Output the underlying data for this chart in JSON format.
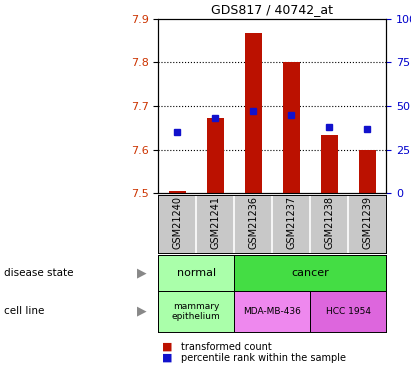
{
  "title": "GDS817 / 40742_at",
  "samples": [
    "GSM21240",
    "GSM21241",
    "GSM21236",
    "GSM21237",
    "GSM21238",
    "GSM21239"
  ],
  "bar_values": [
    7.504,
    7.672,
    7.867,
    7.8,
    7.633,
    7.6
  ],
  "bar_bottom": 7.5,
  "percentile_pct": [
    35,
    43,
    47,
    45,
    38,
    37
  ],
  "ylim_left": [
    7.5,
    7.9
  ],
  "ylim_right": [
    0,
    100
  ],
  "yticks_left": [
    7.5,
    7.6,
    7.7,
    7.8,
    7.9
  ],
  "yticks_right": [
    0,
    25,
    50,
    75,
    100
  ],
  "ytick_right_labels": [
    "0",
    "25",
    "50",
    "75",
    "100%"
  ],
  "grid_ticks": [
    7.6,
    7.7,
    7.8
  ],
  "bar_color": "#bb1100",
  "dot_color": "#1111cc",
  "background_color": "#ffffff",
  "tick_color_left": "#cc3300",
  "tick_color_right": "#0000cc",
  "sample_bg": "#c8c8c8",
  "sample_div_color": "#ffffff",
  "normal_light": "#aaffaa",
  "cancer_green": "#44dd44",
  "mda_pink": "#ee88ee",
  "hcc_pink": "#dd66dd",
  "legend_red_label": "transformed count",
  "legend_blue_label": "percentile rank within the sample",
  "label_disease": "disease state",
  "label_cell": "cell line",
  "arrow_char": "▶"
}
